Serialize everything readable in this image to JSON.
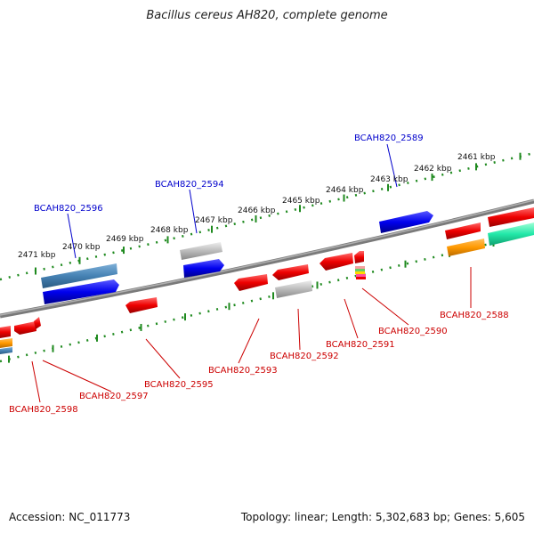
{
  "title": "Bacillus cereus AH820, complete genome",
  "footer": {
    "accession": "Accession: NC_011773",
    "summary": "Topology: linear; Length: 5,302,683 bp; Genes: 5,605"
  },
  "scale_labels": [
    "2471 kbp",
    "2470 kbp",
    "2469 kbp",
    "2468 kbp",
    "2467 kbp",
    "2466 kbp",
    "2465 kbp",
    "2464 kbp",
    "2463 kbp",
    "2462 kbp",
    "2461 kbp"
  ],
  "gene_labels_forward": [
    "BCAH820_2596",
    "BCAH820_2594",
    "BCAH820_2589"
  ],
  "gene_labels_reverse": [
    "BCAH820_2598",
    "BCAH820_2597",
    "BCAH820_2595",
    "BCAH820_2593",
    "BCAH820_2592",
    "BCAH820_2591",
    "BCAH820_2590",
    "BCAH820_2588"
  ],
  "colors": {
    "forward_label": "#0000cc",
    "reverse_label": "#cc0000",
    "scale_ticks": "#1f8a1f",
    "backbone": "#7a7a7a"
  }
}
